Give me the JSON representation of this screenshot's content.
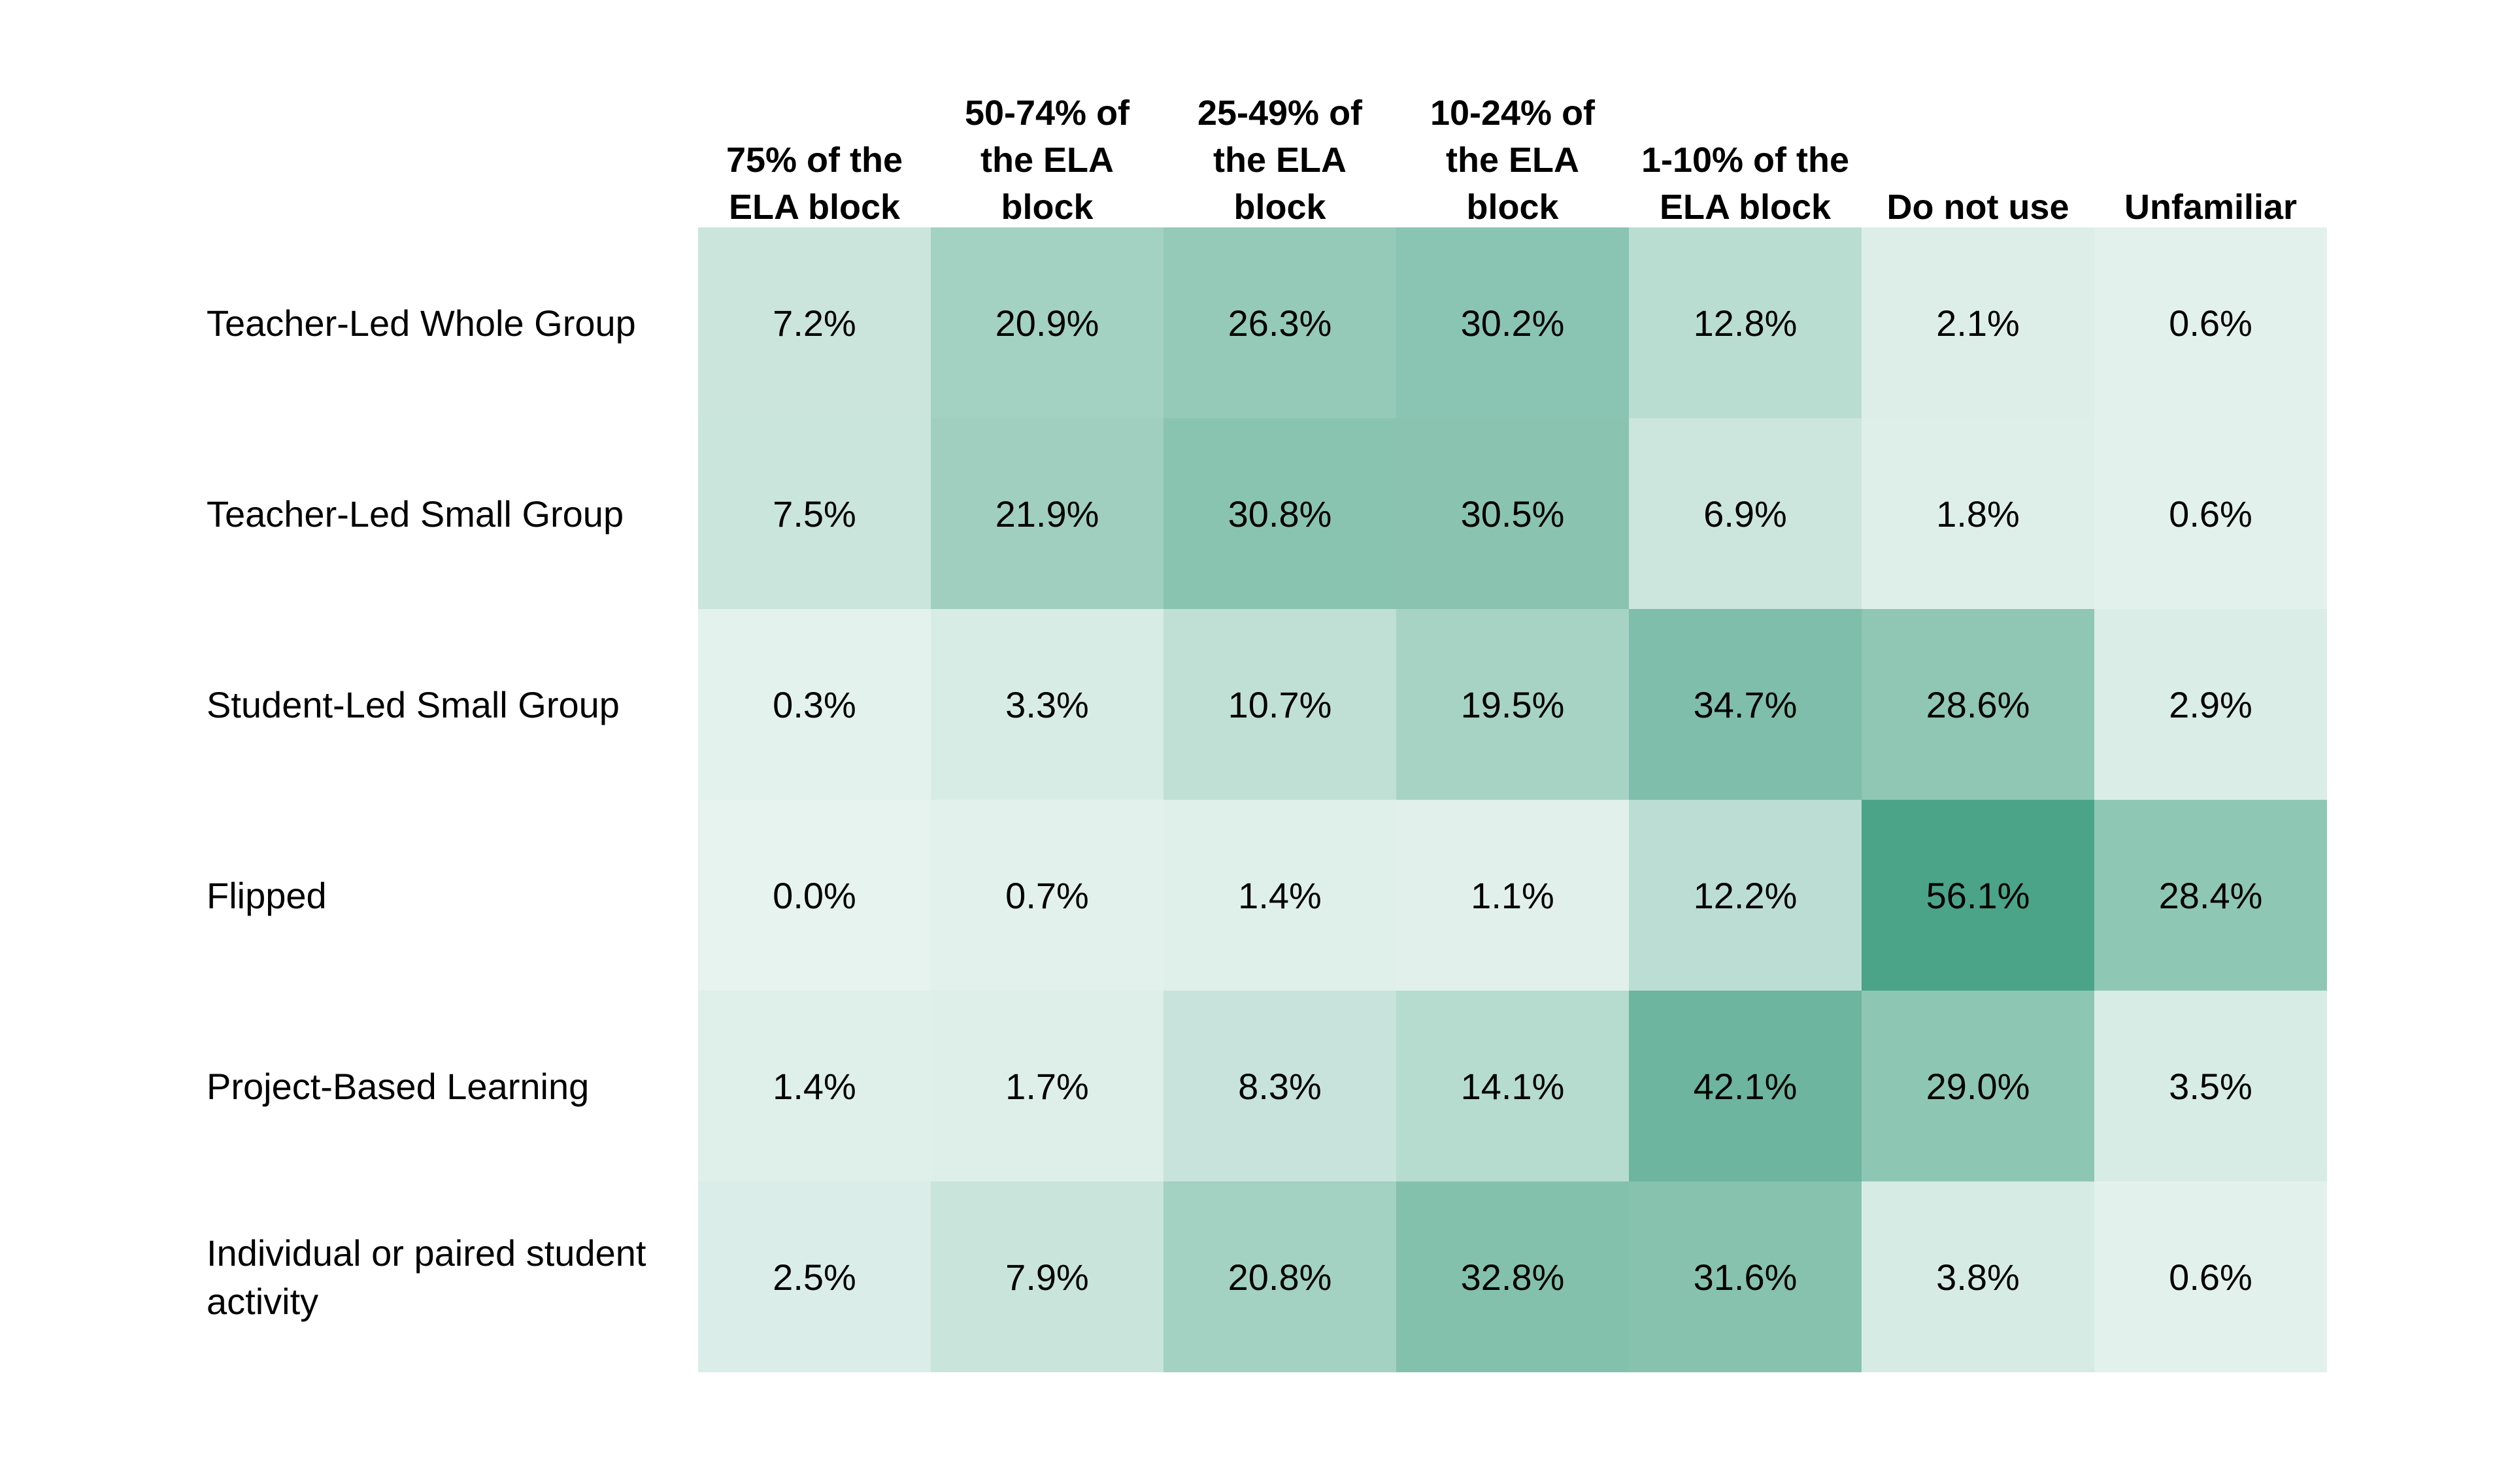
{
  "chart_data": {
    "type": "heatmap",
    "columns": [
      "75% of the ELA block",
      "50-74% of the ELA block",
      "25-49% of the ELA block",
      "10-24% of the ELA block",
      "1-10% of the ELA block",
      "Do not use",
      "Unfamiliar"
    ],
    "column_header_lines": [
      [
        "75% of the",
        "ELA block"
      ],
      [
        "50-74% of",
        "the ELA",
        "block"
      ],
      [
        "25-49% of",
        "the ELA",
        "block"
      ],
      [
        "10-24% of",
        "the ELA",
        "block"
      ],
      [
        "1-10% of the",
        "ELA block"
      ],
      [
        "Do not use"
      ],
      [
        "Unfamiliar"
      ]
    ],
    "rows": [
      "Teacher-Led Whole Group",
      "Teacher-Led Small Group",
      "Student-Led Small Group",
      "Flipped",
      "Project-Based Learning",
      "Individual or paired student activity"
    ],
    "row_label_lines": [
      [
        "Teacher-Led Whole Group"
      ],
      [
        "Teacher-Led Small Group"
      ],
      [
        "Student-Led Small Group"
      ],
      [
        "Flipped"
      ],
      [
        "Project-Based Learning"
      ],
      [
        "Individual or paired student",
        "activity"
      ]
    ],
    "values": [
      [
        7.2,
        20.9,
        26.3,
        30.2,
        12.8,
        2.1,
        0.6
      ],
      [
        7.5,
        21.9,
        30.8,
        30.5,
        6.9,
        1.8,
        0.6
      ],
      [
        0.3,
        3.3,
        10.7,
        19.5,
        34.7,
        28.6,
        2.9
      ],
      [
        0.0,
        0.7,
        1.4,
        1.1,
        12.2,
        56.1,
        28.4
      ],
      [
        1.4,
        1.7,
        8.3,
        14.1,
        42.1,
        29.0,
        3.5
      ],
      [
        2.5,
        7.9,
        20.8,
        32.8,
        31.6,
        3.8,
        0.6
      ]
    ],
    "value_suffix": "%",
    "colors": {
      "low": "#e6f3ef",
      "high": "#4ba487",
      "text": "#000000"
    }
  }
}
